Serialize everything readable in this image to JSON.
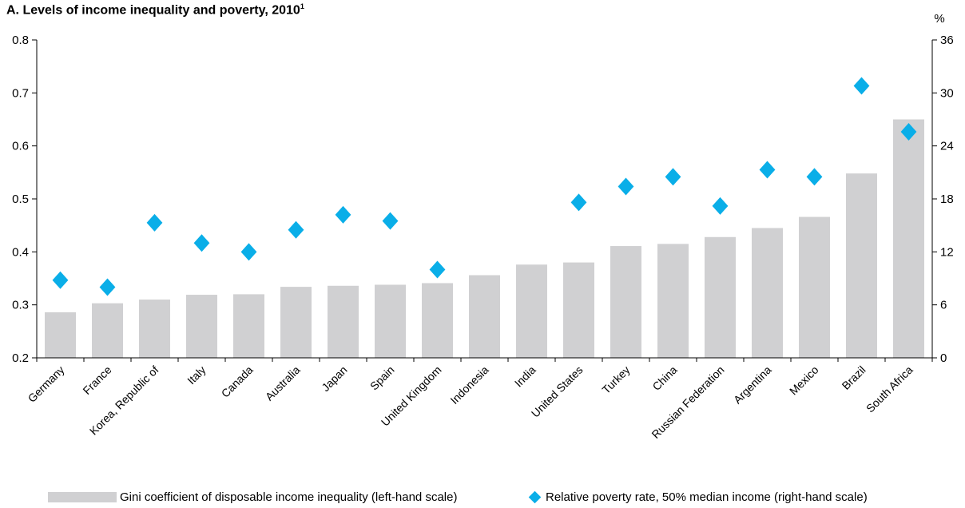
{
  "title": "A. Levels of income inequality and poverty, 2010",
  "title_note": "1",
  "right_axis_unit": "%",
  "colors": {
    "bar": "#d0d0d2",
    "diamond": "#0aaee8",
    "axis": "#000000"
  },
  "legend": {
    "bar_label": "Gini coefficient of disposable income inequality (left-hand scale)",
    "diamond_label": "Relative poverty rate, 50% median income (right-hand scale)"
  },
  "chart_data": {
    "type": "bar",
    "categories": [
      "Germany",
      "France",
      "Korea, Republic of",
      "Italy",
      "Canada",
      "Australia",
      "Japan",
      "Spain",
      "United Kingdom",
      "Indonesia",
      "India",
      "United States",
      "Turkey",
      "China",
      "Russian Federation",
      "Argentina",
      "Mexico",
      "Brazil",
      "South Africa"
    ],
    "series": [
      {
        "name": "Gini coefficient of disposable income inequality (left-hand scale)",
        "type": "bar",
        "axis": "left",
        "values": [
          0.286,
          0.303,
          0.31,
          0.319,
          0.32,
          0.334,
          0.336,
          0.338,
          0.341,
          0.356,
          0.376,
          0.38,
          0.411,
          0.415,
          0.428,
          0.445,
          0.466,
          0.548,
          0.65
        ]
      },
      {
        "name": "Relative poverty rate, 50% median income (right-hand scale)",
        "type": "scatter",
        "axis": "right",
        "values": [
          8.8,
          8.0,
          15.3,
          13.0,
          12.0,
          14.5,
          16.2,
          15.5,
          10.0,
          null,
          null,
          17.6,
          19.4,
          20.5,
          17.2,
          21.3,
          20.5,
          30.8,
          25.6
        ]
      }
    ],
    "left_axis": {
      "ylim": [
        0.2,
        0.8
      ],
      "ticks": [
        "0.2",
        "0.3",
        "0.4",
        "0.5",
        "0.6",
        "0.7",
        "0.8"
      ]
    },
    "right_axis": {
      "ylim": [
        0,
        36
      ],
      "ticks": [
        "0",
        "6",
        "12",
        "18",
        "24",
        "30",
        "36"
      ]
    },
    "grid": false,
    "legend_position": "bottom"
  }
}
